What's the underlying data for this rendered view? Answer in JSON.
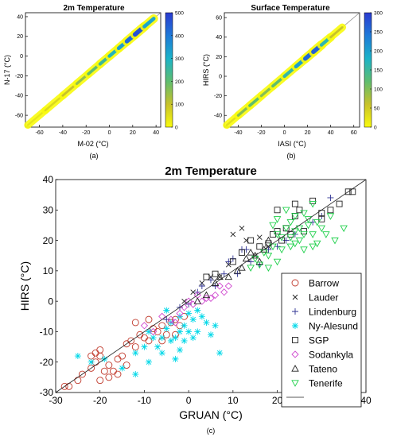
{
  "chart_data": [
    {
      "type": "scatter",
      "panel_label": "(a)",
      "title": "2m Temperature",
      "xlabel": "M-02 (°C)",
      "ylabel": "N-17 (°C)",
      "xlim": [
        -72,
        44
      ],
      "ylim": [
        -72,
        44
      ],
      "xticks": [
        "-60",
        "-40",
        "-20",
        "0",
        "20",
        "40"
      ],
      "yticks": [
        "-60",
        "-40",
        "-20",
        "0",
        "20",
        "40"
      ],
      "colorbar": {
        "range": [
          0,
          500
        ],
        "ticks": [
          "0",
          "100",
          "200",
          "300",
          "400",
          "500"
        ]
      },
      "density_band": [
        {
          "x": -70,
          "y": -70,
          "level": 0.05
        },
        {
          "x": -55,
          "y": -55,
          "level": 0.1
        },
        {
          "x": -40,
          "y": -40,
          "level": 0.15
        },
        {
          "x": -28,
          "y": -28,
          "level": 0.25
        },
        {
          "x": -18,
          "y": -18,
          "level": 0.35
        },
        {
          "x": -8,
          "y": -8,
          "level": 0.45
        },
        {
          "x": 0,
          "y": 0,
          "level": 0.55
        },
        {
          "x": 8,
          "y": 8,
          "level": 0.6
        },
        {
          "x": 15,
          "y": 15,
          "level": 0.75
        },
        {
          "x": 22,
          "y": 22,
          "level": 0.95
        },
        {
          "x": 30,
          "y": 30,
          "level": 0.9
        },
        {
          "x": 38,
          "y": 38,
          "level": 0.4
        }
      ],
      "grid": false
    },
    {
      "type": "scatter",
      "panel_label": "(b)",
      "title": "Surface Temperature",
      "xlabel": "IASI (°C)",
      "ylabel": "HIRS (°C)",
      "xlim": [
        -52,
        65
      ],
      "ylim": [
        -52,
        65
      ],
      "xticks": [
        "-40",
        "-20",
        "0",
        "20",
        "40",
        "60"
      ],
      "yticks": [
        "-40",
        "-20",
        "0",
        "20",
        "40",
        "60"
      ],
      "colorbar": {
        "range": [
          0,
          300
        ],
        "ticks": [
          "0",
          "50",
          "100",
          "150",
          "200",
          "250",
          "300"
        ]
      },
      "density_band": [
        {
          "x": -50,
          "y": -50,
          "level": 0.05
        },
        {
          "x": -40,
          "y": -40,
          "level": 0.15
        },
        {
          "x": -30,
          "y": -30,
          "level": 0.5
        },
        {
          "x": -20,
          "y": -20,
          "level": 0.3
        },
        {
          "x": -10,
          "y": -10,
          "level": 0.35
        },
        {
          "x": 0,
          "y": 0,
          "level": 0.45
        },
        {
          "x": 10,
          "y": 10,
          "level": 0.6
        },
        {
          "x": 18,
          "y": 18,
          "level": 0.75
        },
        {
          "x": 25,
          "y": 25,
          "level": 0.95
        },
        {
          "x": 32,
          "y": 32,
          "level": 0.8
        },
        {
          "x": 40,
          "y": 40,
          "level": 0.3
        },
        {
          "x": 50,
          "y": 50,
          "level": 0.1
        }
      ],
      "grid": false
    },
    {
      "type": "scatter",
      "panel_label": "(c)",
      "title": "2m Temperature",
      "xlabel": "GRUAN (°C)",
      "ylabel": "HIRS (°C)",
      "xlim": [
        -30,
        40
      ],
      "ylim": [
        -30,
        40
      ],
      "xticks": [
        "-30",
        "-20",
        "-10",
        "0",
        "10",
        "20",
        "30",
        "40"
      ],
      "yticks": [
        "-30",
        "-20",
        "-10",
        "0",
        "10",
        "20",
        "30",
        "40"
      ],
      "legend_position": "bottom-right",
      "grid": false,
      "series": [
        {
          "name": "Barrow",
          "color": "#c0392b",
          "marker": "circle",
          "points": [
            [
              -28,
              -28
            ],
            [
              -27,
              -28
            ],
            [
              -25,
              -26
            ],
            [
              -24,
              -24
            ],
            [
              -22,
              -22
            ],
            [
              -21,
              -20
            ],
            [
              -20,
              -18
            ],
            [
              -21,
              -17
            ],
            [
              -22,
              -18
            ],
            [
              -20,
              -16
            ],
            [
              -18,
              -21
            ],
            [
              -18,
              -25
            ],
            [
              -17,
              -23
            ],
            [
              -16,
              -19
            ],
            [
              -15,
              -18
            ],
            [
              -14,
              -21
            ],
            [
              -14,
              -14
            ],
            [
              -13,
              -13
            ],
            [
              -12,
              -15
            ],
            [
              -12,
              -7
            ],
            [
              -11,
              -11
            ],
            [
              -10,
              -12
            ],
            [
              -9,
              -6
            ],
            [
              -9,
              -13
            ],
            [
              -8,
              -9
            ],
            [
              -7,
              -10
            ],
            [
              -6,
              -13
            ],
            [
              -6,
              -8
            ],
            [
              -5,
              -11
            ],
            [
              -4,
              -7
            ],
            [
              -3,
              -11
            ],
            [
              -3,
              -6
            ],
            [
              -2,
              -8
            ],
            [
              -1,
              -5
            ],
            [
              -20,
              -26
            ],
            [
              -19,
              -23
            ],
            [
              -16,
              -24
            ]
          ]
        },
        {
          "name": "Lauder",
          "color": "#222222",
          "marker": "x",
          "points": [
            [
              -1,
              0
            ],
            [
              1,
              3
            ],
            [
              3,
              6
            ],
            [
              5,
              8
            ],
            [
              7,
              8
            ],
            [
              9,
              12
            ],
            [
              10,
              22
            ],
            [
              12,
              24
            ],
            [
              13,
              20
            ],
            [
              15,
              15
            ],
            [
              16,
              21
            ],
            [
              18,
              18
            ]
          ]
        },
        {
          "name": "Lindenburg",
          "color": "#2e3192",
          "marker": "plus",
          "points": [
            [
              -5,
              -6
            ],
            [
              -2,
              -2
            ],
            [
              0,
              -1
            ],
            [
              2,
              3
            ],
            [
              3,
              5
            ],
            [
              5,
              7
            ],
            [
              6,
              5
            ],
            [
              8,
              9
            ],
            [
              9,
              13
            ],
            [
              10,
              14
            ],
            [
              11,
              9
            ],
            [
              12,
              17
            ],
            [
              13,
              17
            ],
            [
              14,
              13
            ],
            [
              16,
              12
            ],
            [
              18,
              17
            ],
            [
              20,
              18
            ],
            [
              22,
              20
            ],
            [
              24,
              22
            ],
            [
              28,
              26
            ],
            [
              30,
              28
            ],
            [
              32,
              34
            ]
          ]
        },
        {
          "name": "Ny-Alesund",
          "color": "#00d8e8",
          "marker": "asterisk",
          "points": [
            [
              -25,
              -18
            ],
            [
              -22,
              -20
            ],
            [
              -19,
              -19
            ],
            [
              -15,
              -22
            ],
            [
              -12,
              -24
            ],
            [
              -12,
              -17
            ],
            [
              -10,
              -15
            ],
            [
              -9,
              -10
            ],
            [
              -8,
              -12
            ],
            [
              -7,
              -15
            ],
            [
              -6,
              -17
            ],
            [
              -6,
              -12
            ],
            [
              -5,
              -9
            ],
            [
              -4,
              -13
            ],
            [
              -4,
              -7
            ],
            [
              -3,
              -19
            ],
            [
              -3,
              -12
            ],
            [
              -2,
              -10
            ],
            [
              -2,
              -5
            ],
            [
              -1,
              -13
            ],
            [
              -1,
              -8
            ],
            [
              0,
              -4
            ],
            [
              0,
              -10
            ],
            [
              1,
              -6
            ],
            [
              1,
              -12
            ],
            [
              2,
              -3
            ],
            [
              2,
              -10
            ],
            [
              3,
              -5
            ],
            [
              4,
              -7
            ],
            [
              5,
              -11
            ],
            [
              6,
              -8
            ],
            [
              7,
              -17
            ],
            [
              -2,
              -16
            ],
            [
              -5,
              -3
            ],
            [
              -9,
              -20
            ]
          ]
        },
        {
          "name": "SGP",
          "color": "#222222",
          "marker": "square",
          "points": [
            [
              4,
              8
            ],
            [
              6,
              9
            ],
            [
              10,
              13
            ],
            [
              12,
              16
            ],
            [
              14,
              20
            ],
            [
              16,
              18
            ],
            [
              18,
              19
            ],
            [
              19,
              22
            ],
            [
              20,
              23
            ],
            [
              20,
              30
            ],
            [
              21,
              20
            ],
            [
              22,
              24
            ],
            [
              23,
              22
            ],
            [
              24,
              28
            ],
            [
              24,
              32
            ],
            [
              25,
              30
            ],
            [
              26,
              23
            ],
            [
              28,
              33
            ],
            [
              30,
              27
            ],
            [
              30,
              29
            ],
            [
              32,
              30
            ],
            [
              34,
              32
            ],
            [
              36,
              36
            ],
            [
              37,
              36
            ]
          ]
        },
        {
          "name": "Sodankyla",
          "color": "#d04ad0",
          "marker": "diamond",
          "points": [
            [
              -10,
              -8
            ],
            [
              -8,
              -10
            ],
            [
              -6,
              -5
            ],
            [
              -4,
              -6
            ],
            [
              -3,
              -7
            ],
            [
              -2,
              -4
            ],
            [
              -1,
              -2
            ],
            [
              0,
              0
            ],
            [
              1,
              -1
            ],
            [
              2,
              2
            ],
            [
              3,
              0
            ],
            [
              4,
              1
            ],
            [
              5,
              1
            ],
            [
              6,
              2
            ],
            [
              7,
              5
            ],
            [
              8,
              3
            ],
            [
              9,
              5
            ]
          ]
        },
        {
          "name": "Tateno",
          "color": "#222222",
          "marker": "triangle-up",
          "points": [
            [
              2,
              0
            ],
            [
              4,
              2
            ],
            [
              6,
              6
            ],
            [
              7,
              8
            ],
            [
              9,
              8
            ],
            [
              11,
              10
            ],
            [
              12,
              11
            ],
            [
              13,
              14
            ],
            [
              14,
              16
            ],
            [
              15,
              15
            ],
            [
              16,
              13
            ],
            [
              17,
              17
            ],
            [
              18,
              20
            ]
          ]
        },
        {
          "name": "Tenerife",
          "color": "#1ed04a",
          "marker": "triangle-down",
          "points": [
            [
              14,
              11
            ],
            [
              15,
              14
            ],
            [
              16,
              12
            ],
            [
              17,
              16
            ],
            [
              18,
              15
            ],
            [
              18,
              11
            ],
            [
              19,
              18
            ],
            [
              19,
              25
            ],
            [
              20,
              13
            ],
            [
              20,
              22
            ],
            [
              20,
              27
            ],
            [
              21,
              17
            ],
            [
              21,
              21
            ],
            [
              22,
              24
            ],
            [
              22,
              30
            ],
            [
              23,
              18
            ],
            [
              23,
              21
            ],
            [
              23,
              26
            ],
            [
              24,
              19
            ],
            [
              24,
              23
            ],
            [
              24,
              28
            ],
            [
              25,
              20
            ],
            [
              25,
              24
            ],
            [
              26,
              17
            ],
            [
              26,
              22
            ],
            [
              26,
              29
            ],
            [
              27,
              25
            ],
            [
              27,
              27
            ],
            [
              28,
              18
            ],
            [
              28,
              22
            ],
            [
              28,
              32
            ],
            [
              29,
              19
            ],
            [
              29,
              26
            ],
            [
              30,
              24
            ],
            [
              31,
              22
            ],
            [
              32,
              28
            ],
            [
              33,
              20
            ],
            [
              35,
              24
            ]
          ]
        },
        {
          "name": "",
          "color": "#222222",
          "marker": "line",
          "points": [
            [
              -30,
              -30
            ],
            [
              40,
              40
            ]
          ]
        }
      ]
    }
  ]
}
